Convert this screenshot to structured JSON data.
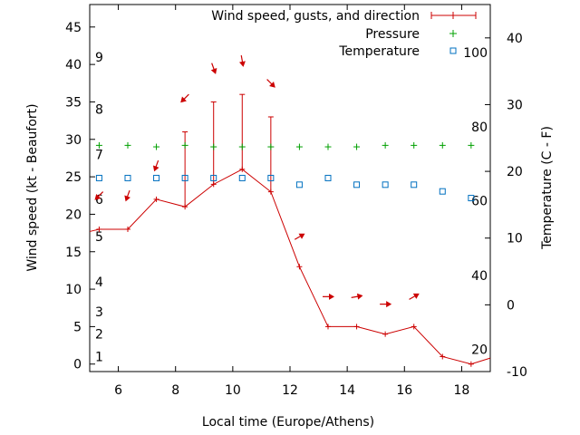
{
  "chart_data": {
    "type": "line",
    "xlabel": "Local time (Europe/Athens)",
    "ylabel": "Wind speed (kt - Beaufort)",
    "y2label": "Temperature (C - F)",
    "xlim": [
      5,
      19
    ],
    "ylim": [
      -1,
      48
    ],
    "y2lim": [
      -10,
      45
    ],
    "x_ticks": [
      6,
      8,
      10,
      12,
      14,
      16,
      18
    ],
    "y_ticks": [
      0,
      5,
      10,
      15,
      20,
      25,
      30,
      35,
      40,
      45
    ],
    "y2_ticks": [
      -10,
      0,
      10,
      20,
      30,
      40
    ],
    "beaufort_labels": [
      {
        "label": "1",
        "y": 1
      },
      {
        "label": "2",
        "y": 4
      },
      {
        "label": "3",
        "y": 7
      },
      {
        "label": "4",
        "y": 11
      },
      {
        "label": "5",
        "y": 17
      },
      {
        "label": "6",
        "y": 22
      },
      {
        "label": "7",
        "y": 28
      },
      {
        "label": "8",
        "y": 34
      },
      {
        "label": "9",
        "y": 41
      }
    ],
    "fahrenheit_labels": [
      {
        "label": "20",
        "c": -6.7
      },
      {
        "label": "40",
        "c": 4.4
      },
      {
        "label": "60",
        "c": 15.6
      },
      {
        "label": "80",
        "c": 26.7
      },
      {
        "label": "100",
        "c": 37.8
      }
    ],
    "legend": {
      "position": "top-right",
      "entries": [
        "Wind speed, gusts, and direction",
        "Pressure",
        "Temperature"
      ]
    },
    "series": [
      {
        "name": "Wind speed, gusts, and direction",
        "style": "line-with-error-bars",
        "color": "#cc0000",
        "x": [
          5,
          5.33,
          6.33,
          7.33,
          8.33,
          9.33,
          10.33,
          11.33,
          12.33,
          13.33,
          14.33,
          15.33,
          16.33,
          17.33,
          18.33,
          19
        ],
        "y": [
          17.7,
          18,
          18,
          22,
          21,
          24,
          26,
          23,
          13,
          5,
          5,
          4,
          5,
          1,
          0,
          0.8
        ],
        "gust": [
          null,
          null,
          null,
          null,
          31,
          35,
          36,
          33,
          null,
          null,
          null,
          null,
          null,
          null,
          null,
          null
        ]
      },
      {
        "name": "Pressure",
        "style": "points-plus",
        "color": "#00a000",
        "x": [
          5.33,
          6.33,
          7.33,
          8.33,
          9.33,
          10.33,
          11.33,
          12.33,
          13.33,
          14.33,
          15.33,
          16.33,
          17.33,
          18.33
        ],
        "y": [
          29.2,
          29.2,
          29,
          29.2,
          29,
          29,
          29,
          29,
          29,
          29,
          29.2,
          29.2,
          29.2,
          29.2
        ]
      },
      {
        "name": "Temperature",
        "style": "points-square",
        "color": "#0070c0",
        "axis": "y2",
        "x": [
          5.33,
          6.33,
          7.33,
          8.33,
          9.33,
          10.33,
          11.33,
          12.33,
          13.33,
          14.33,
          15.33,
          16.33,
          17.33,
          18.33
        ],
        "y": [
          19,
          19,
          19,
          19,
          19,
          19,
          19,
          18,
          19,
          18,
          18,
          18,
          17,
          16
        ]
      }
    ],
    "wind_direction": {
      "color": "#cc0000",
      "points": [
        {
          "x": 5.33,
          "y": 22.5,
          "angle": 225
        },
        {
          "x": 6.33,
          "y": 22.5,
          "angle": 200
        },
        {
          "x": 7.33,
          "y": 26.5,
          "angle": 200
        },
        {
          "x": 8.33,
          "y": 35.5,
          "angle": 225
        },
        {
          "x": 9.33,
          "y": 39.5,
          "angle": 160
        },
        {
          "x": 10.33,
          "y": 40.5,
          "angle": 170
        },
        {
          "x": 11.33,
          "y": 37.5,
          "angle": 135
        },
        {
          "x": 12.33,
          "y": 17,
          "angle": 60
        },
        {
          "x": 13.33,
          "y": 9,
          "angle": 90
        },
        {
          "x": 14.33,
          "y": 9,
          "angle": 80
        },
        {
          "x": 15.33,
          "y": 8,
          "angle": 90
        },
        {
          "x": 16.33,
          "y": 9,
          "angle": 60
        }
      ]
    }
  }
}
